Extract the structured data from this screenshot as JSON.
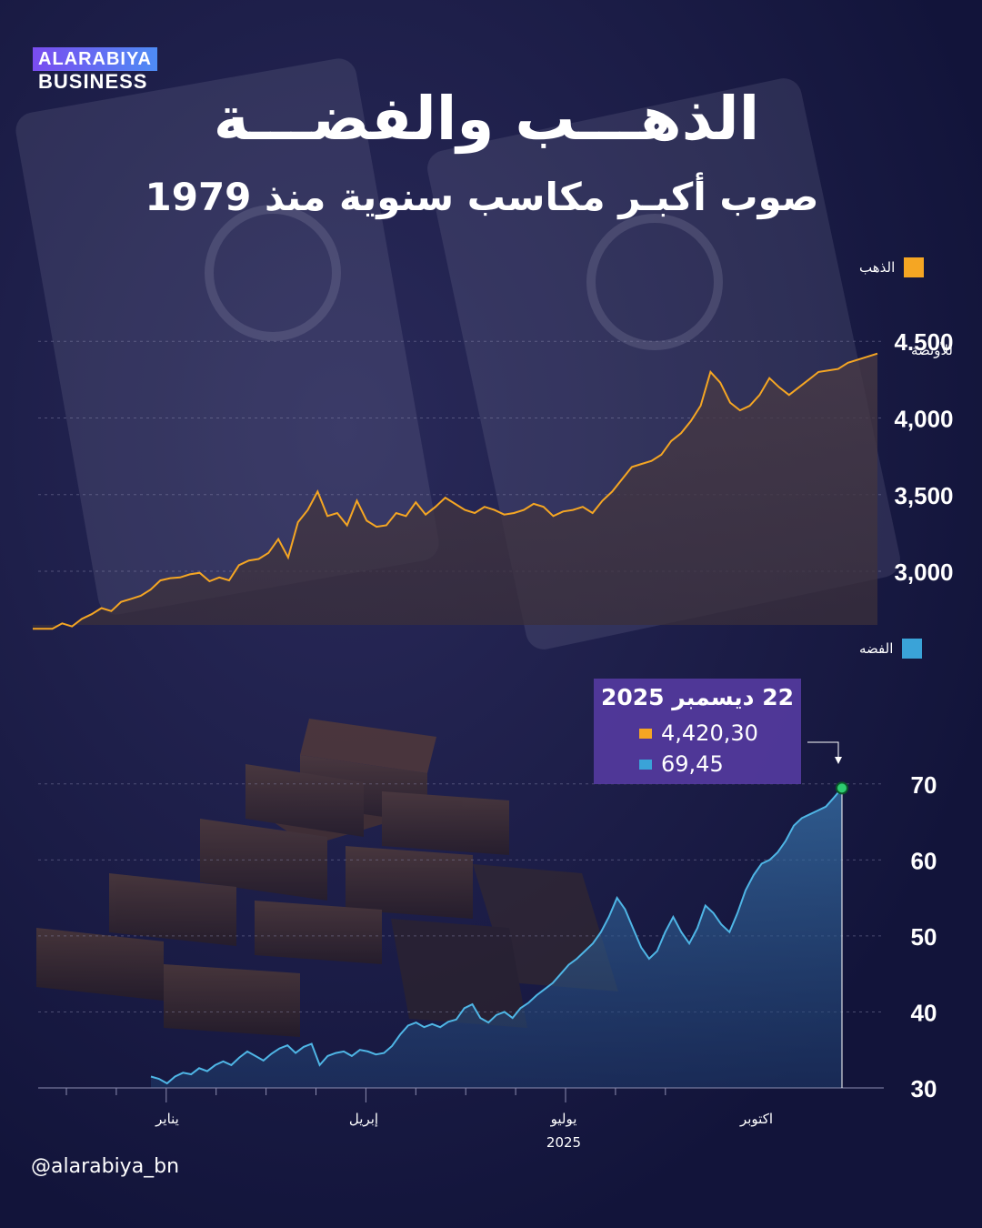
{
  "brand": {
    "top": "ALARABIYA",
    "bottom": "BUSINESS"
  },
  "title": "الذهـــب والفضـــة",
  "subtitle": "صوب أكبـر مكاسب سنوية  منذ 1979",
  "handle": "@alarabiya_bn",
  "colors": {
    "gold": "#f5a623",
    "silver": "#3aa3d8",
    "background": "#141640",
    "tooltip": "#543a9e",
    "marker": "#2ecc71"
  },
  "tooltip": {
    "date": "22 ديسمبر 2025",
    "gold_value": "4,420,30",
    "silver_value": "69,45"
  },
  "chart_data": [
    {
      "type": "area",
      "legend": "الذهب",
      "unit_label": "للأونصة",
      "ylim": [
        2650,
        4620
      ],
      "y_ticks": [
        3000,
        3500,
        4000,
        4500
      ],
      "y_tick_labels": [
        "3,000",
        "3,500",
        "4,000",
        "4.500"
      ],
      "grid": true,
      "x": [
        0,
        3,
        6,
        9,
        12,
        15,
        18,
        21,
        24,
        27,
        30,
        33,
        36,
        39,
        42,
        45,
        48,
        51,
        54,
        57,
        60,
        63,
        66,
        69,
        72,
        75,
        78,
        81,
        84,
        87,
        90,
        93,
        96,
        99,
        102,
        105,
        108,
        111,
        114,
        117,
        120,
        123,
        126,
        129,
        132,
        135,
        138,
        141,
        144,
        147,
        150,
        153,
        156,
        159,
        162,
        165,
        168,
        171,
        174,
        177,
        180,
        183,
        186,
        189,
        192,
        195,
        198,
        201,
        204,
        207,
        210,
        213,
        216,
        219,
        222,
        225,
        228,
        231,
        234,
        237,
        240,
        243,
        246,
        249,
        252,
        255,
        258
      ],
      "values": [
        2625,
        2625,
        2625,
        2660,
        2640,
        2690,
        2720,
        2760,
        2740,
        2800,
        2820,
        2840,
        2880,
        2940,
        2955,
        2960,
        2980,
        2990,
        2935,
        2960,
        2940,
        3040,
        3070,
        3080,
        3120,
        3210,
        3090,
        3320,
        3400,
        3520,
        3360,
        3380,
        3300,
        3460,
        3330,
        3290,
        3300,
        3380,
        3360,
        3450,
        3370,
        3420,
        3480,
        3440,
        3400,
        3380,
        3420,
        3400,
        3370,
        3380,
        3400,
        3440,
        3420,
        3360,
        3390,
        3400,
        3420,
        3380,
        3460,
        3520,
        3600,
        3680,
        3700,
        3720,
        3760,
        3850,
        3900,
        3980,
        4080,
        4300,
        4230,
        4100,
        4050,
        4080,
        4150,
        4260,
        4200,
        4150,
        4200,
        4250,
        4300,
        4310,
        4320,
        4360,
        4380,
        4400,
        4420
      ]
    },
    {
      "type": "area",
      "legend": "الفضه",
      "ylim": [
        30,
        75
      ],
      "y_ticks": [
        30,
        40,
        50,
        60,
        70
      ],
      "y_tick_labels": [
        "30",
        "40",
        "50",
        "60",
        "70"
      ],
      "grid": true,
      "x": [
        0,
        3,
        6,
        9,
        12,
        15,
        18,
        21,
        24,
        27,
        30,
        33,
        36,
        39,
        42,
        45,
        48,
        51,
        54,
        57,
        60,
        63,
        66,
        69,
        72,
        75,
        78,
        81,
        84,
        87,
        90,
        93,
        96,
        99,
        102,
        105,
        108,
        111,
        114,
        117,
        120,
        123,
        126,
        129,
        132,
        135,
        138,
        141,
        144,
        147,
        150,
        153,
        156,
        159,
        162,
        165,
        168,
        171,
        174,
        177,
        180,
        183,
        186,
        189,
        192,
        195,
        198,
        201,
        204,
        207,
        210,
        213,
        216,
        219,
        222,
        225,
        228,
        231,
        234,
        237,
        240,
        243,
        246,
        249,
        252,
        255,
        258
      ],
      "values": [
        31.5,
        31.2,
        30.6,
        31.5,
        32.0,
        31.8,
        32.6,
        32.2,
        33.0,
        33.5,
        33.0,
        34.0,
        34.8,
        34.2,
        33.6,
        34.5,
        35.2,
        35.6,
        34.6,
        35.4,
        35.8,
        33.0,
        34.2,
        34.6,
        34.8,
        34.2,
        35.0,
        34.8,
        34.4,
        34.6,
        35.5,
        37.0,
        38.2,
        38.6,
        38.0,
        38.4,
        38.0,
        38.7,
        39.0,
        40.5,
        41.0,
        39.2,
        38.6,
        39.6,
        40.0,
        39.2,
        40.5,
        41.2,
        42.2,
        43.0,
        43.8,
        45.0,
        46.2,
        47.0,
        48.0,
        49.0,
        50.5,
        52.5,
        55.0,
        53.5,
        51.0,
        48.5,
        47.0,
        48.0,
        50.5,
        52.5,
        50.5,
        49.0,
        51.0,
        54.0,
        53.0,
        51.5,
        50.5,
        53.0,
        56.0,
        58.0,
        59.5,
        60.0,
        61.0,
        62.5,
        64.5,
        65.5,
        66.0,
        66.5,
        67.0,
        68.2,
        69.45
      ]
    }
  ],
  "x_axis": {
    "labels": [
      "يناير",
      "إبريل",
      "يوليو",
      "اكتوبر"
    ],
    "year": "2025"
  }
}
